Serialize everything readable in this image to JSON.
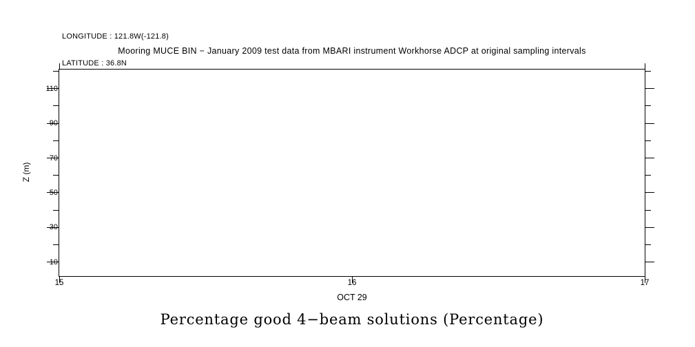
{
  "header": {
    "longitude": "LONGITUDE : 121.8W(-121.8)",
    "latitude": "LATITUDE : 36.8N",
    "year": "YEAR : 2009"
  },
  "chart_data": {
    "type": "line",
    "title": "Mooring MUCE BIN − January 2009 test data from MBARI instrument Workhorse ADCP at original sampling intervals",
    "caption": "Percentage good 4−beam solutions (Percentage)",
    "ylabel": "Z (m)",
    "xlabel": "OCT 29",
    "xlim": [
      15,
      17
    ],
    "ylim": [
      2,
      121
    ],
    "x_major_ticks": [
      15,
      16,
      17
    ],
    "x_tick_labels": [
      "15",
      "16",
      "17"
    ],
    "y_major_ticks": [
      110,
      90,
      70,
      50,
      30,
      10
    ],
    "y_minor_ticks": [
      120,
      100,
      80,
      60,
      40,
      20
    ],
    "grid": false,
    "legend": false,
    "series": []
  }
}
